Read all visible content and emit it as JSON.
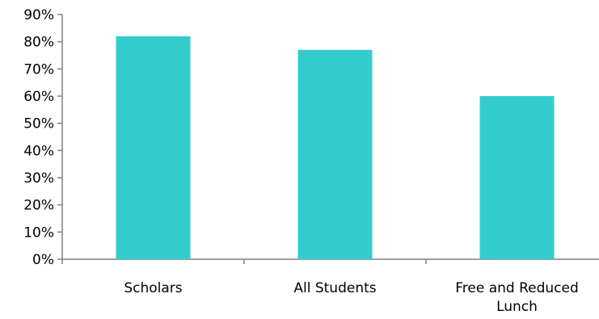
{
  "chart_data": {
    "type": "bar",
    "title": "",
    "xlabel": "",
    "ylabel": "",
    "categories": [
      [
        "Scholars"
      ],
      [
        "All Students"
      ],
      [
        "Free and Reduced",
        "Lunch"
      ]
    ],
    "values": [
      82,
      77,
      60
    ],
    "value_format": "percent",
    "ylim": [
      0,
      90
    ],
    "yticks": [
      0,
      10,
      20,
      30,
      40,
      50,
      60,
      70,
      80,
      90
    ],
    "ytick_labels": [
      "0%",
      "10%",
      "20%",
      "30%",
      "40%",
      "50%",
      "60%",
      "70%",
      "80%",
      "90%"
    ],
    "grid": false,
    "legend": "none",
    "colors": {
      "bar": "#33CCCC",
      "axis": "#808080",
      "text": "#000000"
    }
  }
}
